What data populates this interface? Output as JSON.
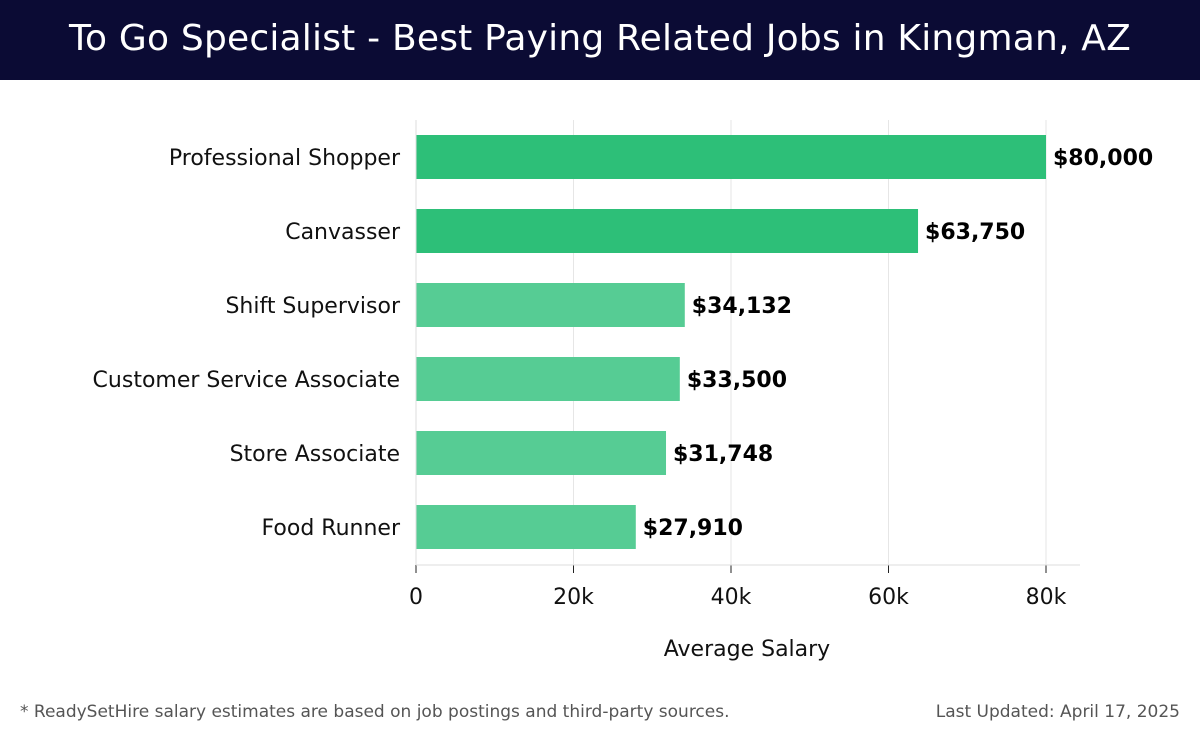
{
  "header": {
    "title": "To Go Specialist - Best Paying Related Jobs in Kingman, AZ"
  },
  "footer": {
    "footnote": "* ReadySetHire salary estimates are based on job postings and third-party sources.",
    "updated": "Last Updated: April 17, 2025"
  },
  "colors": {
    "header_bg": "#0b0b34",
    "bar_top": "#2dbf78",
    "bar_other": "#56cc94"
  },
  "chart_data": {
    "type": "bar",
    "orientation": "horizontal",
    "categories": [
      "Professional Shopper",
      "Canvasser",
      "Shift Supervisor",
      "Customer Service Associate",
      "Store Associate",
      "Food Runner"
    ],
    "values": [
      80000,
      63750,
      34132,
      33500,
      31748,
      27910
    ],
    "value_labels": [
      "$80,000",
      "$63,750",
      "$34,132",
      "$33,500",
      "$31,748",
      "$27,910"
    ],
    "title": "To Go Specialist - Best Paying Related Jobs in Kingman, AZ",
    "xlabel": "Average Salary",
    "ylabel": "",
    "xlim": [
      0,
      80000
    ],
    "x_ticks": [
      0,
      20000,
      40000,
      60000,
      80000
    ],
    "x_tick_labels": [
      "0",
      "20k",
      "40k",
      "60k",
      "80k"
    ],
    "grid": "vertical",
    "legend": "none"
  }
}
